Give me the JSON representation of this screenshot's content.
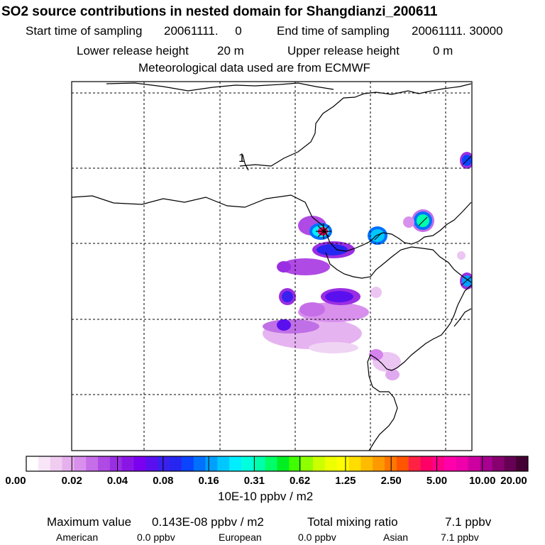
{
  "header": {
    "title": "SO2 source contributions in nested domain for Shangdianzi_200611",
    "start_label": "Start time of sampling",
    "start_value": "20061111.     0",
    "end_label": "End time of sampling",
    "end_value": "20061111. 30000",
    "lower_label": "Lower release height",
    "lower_value": "20 m",
    "upper_label": "Upper release height",
    "upper_value": "0 m",
    "met_line": "Meteorological data used are from ECMWF"
  },
  "map": {
    "contour_label": "1",
    "blobs": [
      {
        "lon": 0.44,
        "lat": 0.19,
        "level": 0.04
      },
      {
        "lon": 0.47,
        "lat": 0.21,
        "level": 0.3
      },
      {
        "lon": 0.53,
        "lat": 0.22,
        "level": 0.1
      },
      {
        "lon": 0.61,
        "lat": 0.19,
        "level": 0.2
      },
      {
        "lon": 0.99,
        "lat": 0.13,
        "level": 0.06
      },
      {
        "lon": 0.46,
        "lat": 0.24,
        "level": 0.05
      },
      {
        "lon": 0.99,
        "lat": 0.36,
        "level": 0.1
      },
      {
        "lon": 0.41,
        "lat": 0.33,
        "level": 0.05
      },
      {
        "lon": 0.48,
        "lat": 0.33,
        "level": 0.05
      },
      {
        "lon": 0.4,
        "lat": 0.38,
        "level": 0.04
      }
    ],
    "marker": "source-marker"
  },
  "colorbar": {
    "colors": [
      "#ffffff",
      "#f8e6f8",
      "#f0ccf0",
      "#e6b0ee",
      "#d890ec",
      "#c56ee8",
      "#b04ae4",
      "#9a2ee2",
      "#8a16e6",
      "#7a00f0",
      "#5a10ee",
      "#3a20ee",
      "#2626f0",
      "#0a44ff",
      "#0070ff",
      "#00a0ff",
      "#00c8ff",
      "#00eeff",
      "#00ffdd",
      "#00ffaa",
      "#00ff66",
      "#00ee22",
      "#40ff00",
      "#90ff00",
      "#ccff00",
      "#eeff00",
      "#ffff00",
      "#ffdd00",
      "#ffbb00",
      "#ff9900",
      "#ff7700",
      "#ff5500",
      "#ff2244",
      "#ff0066",
      "#ff0088",
      "#ff00aa",
      "#ee00aa",
      "#cc00a0",
      "#a80090",
      "#880070",
      "#660055",
      "#440033"
    ],
    "ticks": [
      "0.00",
      "0.02",
      "0.04",
      "0.08",
      "0.16",
      "0.31",
      "0.62",
      "1.25",
      "2.50",
      "5.00",
      "10.00",
      "20.00"
    ],
    "unit": "10E-10 ppbv / m2"
  },
  "footer": {
    "max_label": "Maximum value",
    "max_value": "0.143E-08 ppbv / m2",
    "total_label": "Total mixing ratio",
    "total_value": "7.1 ppbv",
    "american_label": "American",
    "american_value": "0.0 ppbv",
    "european_label": "European",
    "european_value": "0.0 ppbv",
    "asian_label": "Asian",
    "asian_value": "7.1 ppbv"
  }
}
